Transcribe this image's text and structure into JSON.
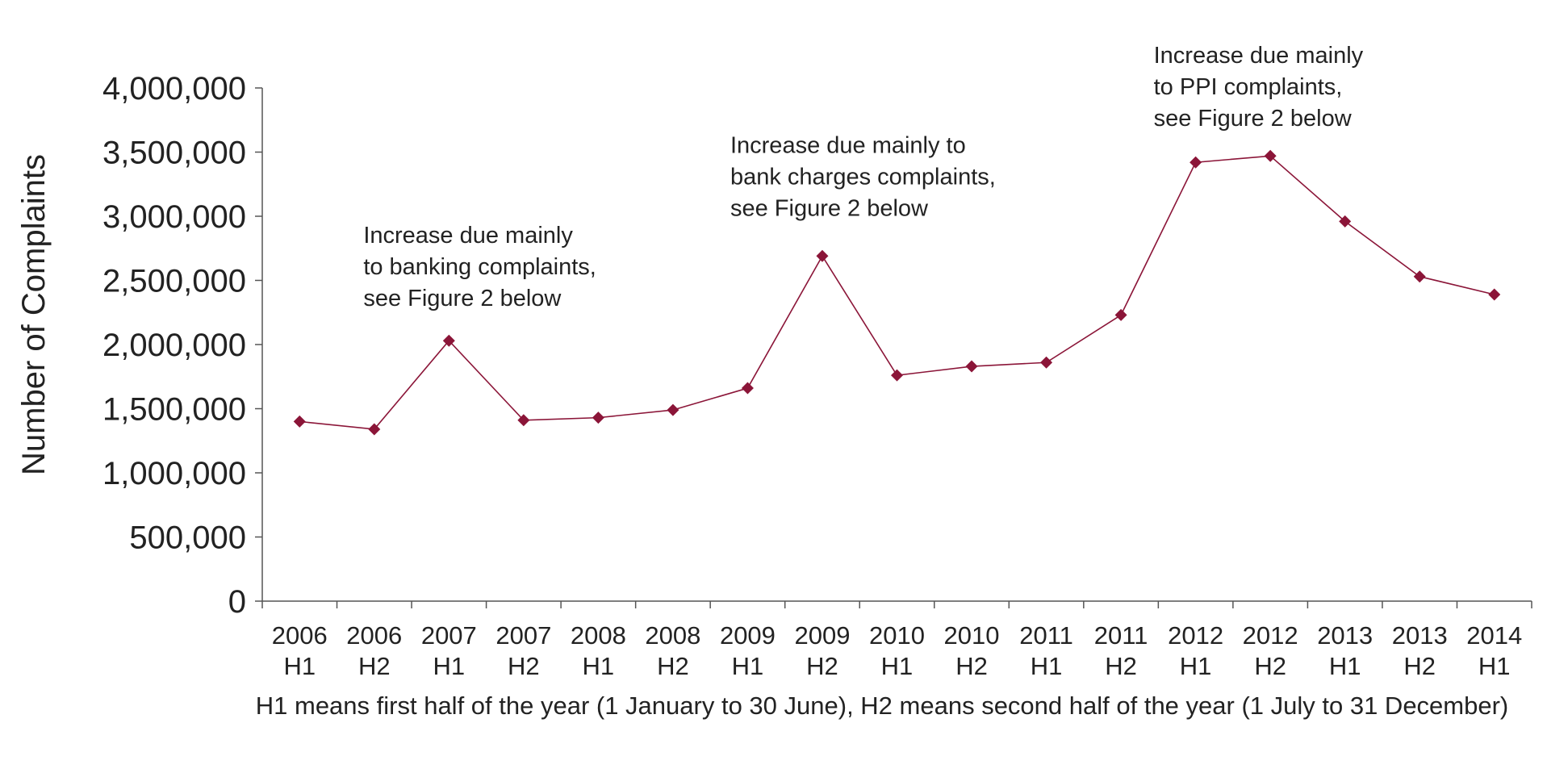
{
  "chart_data": {
    "type": "line",
    "title": "",
    "ylabel": "Number of Complaints",
    "xlabel": "H1 means first half of the year (1 January to 30 June), H2 means second half of the year (1 July to 31 December)",
    "ylim": [
      0,
      4000000
    ],
    "yticks": [
      0,
      500000,
      1000000,
      1500000,
      2000000,
      2500000,
      3000000,
      3500000,
      4000000
    ],
    "ytick_labels": [
      "0",
      "500,000",
      "1,000,000",
      "1,500,000",
      "2,000,000",
      "2,500,000",
      "3,000,000",
      "3,500,000",
      "4,000,000"
    ],
    "grid": false,
    "legend": "none",
    "categories": [
      [
        "2006",
        "H1"
      ],
      [
        "2006",
        "H2"
      ],
      [
        "2007",
        "H1"
      ],
      [
        "2007",
        "H2"
      ],
      [
        "2008",
        "H1"
      ],
      [
        "2008",
        "H2"
      ],
      [
        "2009",
        "H1"
      ],
      [
        "2009",
        "H2"
      ],
      [
        "2010",
        "H1"
      ],
      [
        "2010",
        "H2"
      ],
      [
        "2011",
        "H1"
      ],
      [
        "2011",
        "H2"
      ],
      [
        "2012",
        "H1"
      ],
      [
        "2012",
        "H2"
      ],
      [
        "2013",
        "H1"
      ],
      [
        "2013",
        "H2"
      ],
      [
        "2014",
        "H1"
      ]
    ],
    "series": [
      {
        "name": "Number of Complaints",
        "color": "#8b1538",
        "marker": "diamond",
        "values": [
          1400000,
          1340000,
          2030000,
          1410000,
          1430000,
          1490000,
          1660000,
          2690000,
          1760000,
          1830000,
          1860000,
          2230000,
          3420000,
          3470000,
          2960000,
          2530000,
          2390000
        ]
      }
    ],
    "annotations": [
      {
        "id": "banking",
        "category_index": 2,
        "lines": [
          "Increase due mainly",
          "to banking complaints,",
          "see Figure 2 below"
        ]
      },
      {
        "id": "bank-charges",
        "category_index": 7,
        "lines": [
          "Increase due mainly to",
          "bank charges complaints,",
          "see Figure 2 below"
        ]
      },
      {
        "id": "ppi",
        "category_index": 12,
        "lines": [
          "Increase due mainly",
          "to PPI complaints,",
          "see Figure 2 below"
        ]
      }
    ]
  }
}
